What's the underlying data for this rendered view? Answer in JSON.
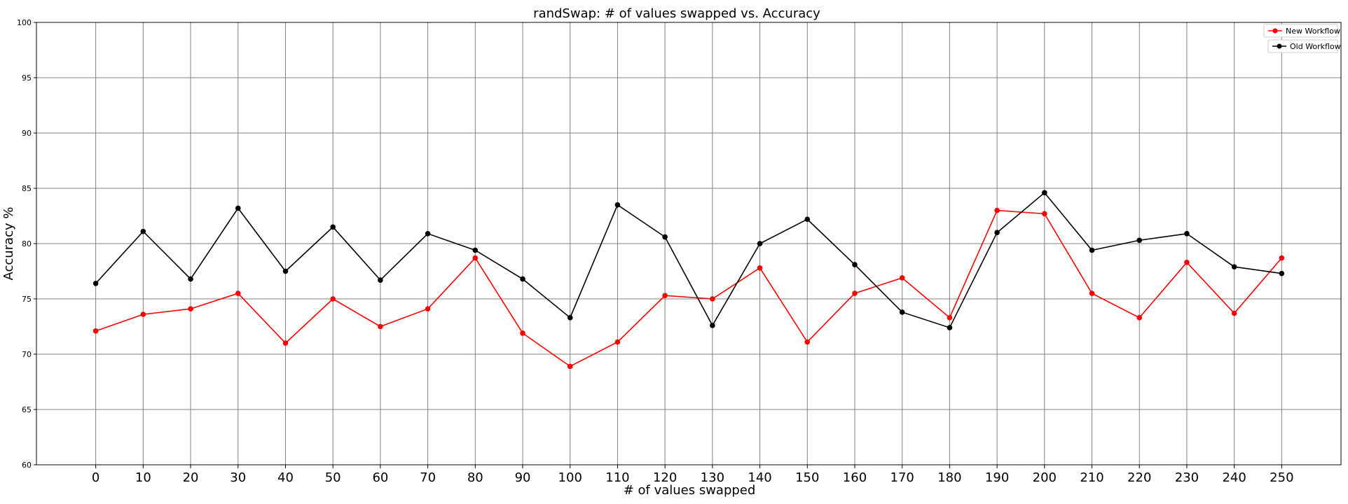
{
  "chart_data": {
    "type": "line",
    "title": "randSwap: # of values swapped vs. Accuracy",
    "xlabel": "# of values swapped",
    "ylabel": "Accuracy %",
    "x": [
      0,
      10,
      20,
      30,
      40,
      50,
      60,
      70,
      80,
      90,
      100,
      110,
      120,
      130,
      140,
      150,
      160,
      170,
      180,
      190,
      200,
      210,
      220,
      230,
      240,
      250
    ],
    "xlim": [
      -12.5,
      262.5
    ],
    "ylim": [
      60,
      100
    ],
    "xticks": [
      "0",
      "10",
      "20",
      "30",
      "40",
      "50",
      "60",
      "70",
      "80",
      "90",
      "100",
      "110",
      "120",
      "130",
      "140",
      "150",
      "160",
      "170",
      "180",
      "190",
      "200",
      "210",
      "220",
      "230",
      "240",
      "250"
    ],
    "yticks": [
      "60",
      "65",
      "70",
      "75",
      "80",
      "85",
      "90",
      "95",
      "100"
    ],
    "grid": true,
    "legend_position": "top-right",
    "series": [
      {
        "name": "New Workflow",
        "color": "#ff0000",
        "marker": "circle",
        "values": [
          72.1,
          73.6,
          74.1,
          75.5,
          71.0,
          75.0,
          72.5,
          74.1,
          78.7,
          71.9,
          68.9,
          71.1,
          75.3,
          75.0,
          77.8,
          71.1,
          75.5,
          76.9,
          73.3,
          83.0,
          82.7,
          75.5,
          73.3,
          78.3,
          73.7,
          78.7
        ]
      },
      {
        "name": "Old Workflow",
        "color": "#000000",
        "marker": "circle",
        "values": [
          76.4,
          81.1,
          76.8,
          83.2,
          77.5,
          81.5,
          76.7,
          80.9,
          79.4,
          76.8,
          73.3,
          83.5,
          80.6,
          72.6,
          80.0,
          82.2,
          78.1,
          73.8,
          72.4,
          81.0,
          84.6,
          79.4,
          80.3,
          80.9,
          77.9,
          77.3
        ]
      }
    ]
  }
}
